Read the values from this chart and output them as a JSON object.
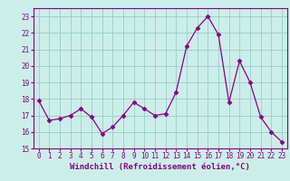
{
  "x": [
    0,
    1,
    2,
    3,
    4,
    5,
    6,
    7,
    8,
    9,
    10,
    11,
    12,
    13,
    14,
    15,
    16,
    17,
    18,
    19,
    20,
    21,
    22,
    23
  ],
  "y": [
    17.9,
    16.7,
    16.8,
    17.0,
    17.4,
    16.9,
    15.9,
    16.3,
    17.0,
    17.8,
    17.4,
    17.0,
    17.1,
    18.4,
    21.2,
    22.3,
    23.0,
    21.9,
    17.8,
    20.3,
    19.0,
    16.9,
    16.0,
    15.4
  ],
  "line_color": "#880088",
  "marker": "D",
  "marker_size": 2.5,
  "bg_color": "#cceee8",
  "grid_color": "#99cccc",
  "xlabel": "Windchill (Refroidissement éolien,°C)",
  "xlabel_color": "#880088",
  "tick_color": "#880088",
  "axis_color": "#880088",
  "ylim": [
    15,
    23.5
  ],
  "yticks": [
    15,
    16,
    17,
    18,
    19,
    20,
    21,
    22,
    23
  ],
  "xticks": [
    0,
    1,
    2,
    3,
    4,
    5,
    6,
    7,
    8,
    9,
    10,
    11,
    12,
    13,
    14,
    15,
    16,
    17,
    18,
    19,
    20,
    21,
    22,
    23
  ],
  "tick_fontsize": 5.5,
  "xlabel_fontsize": 6.5
}
